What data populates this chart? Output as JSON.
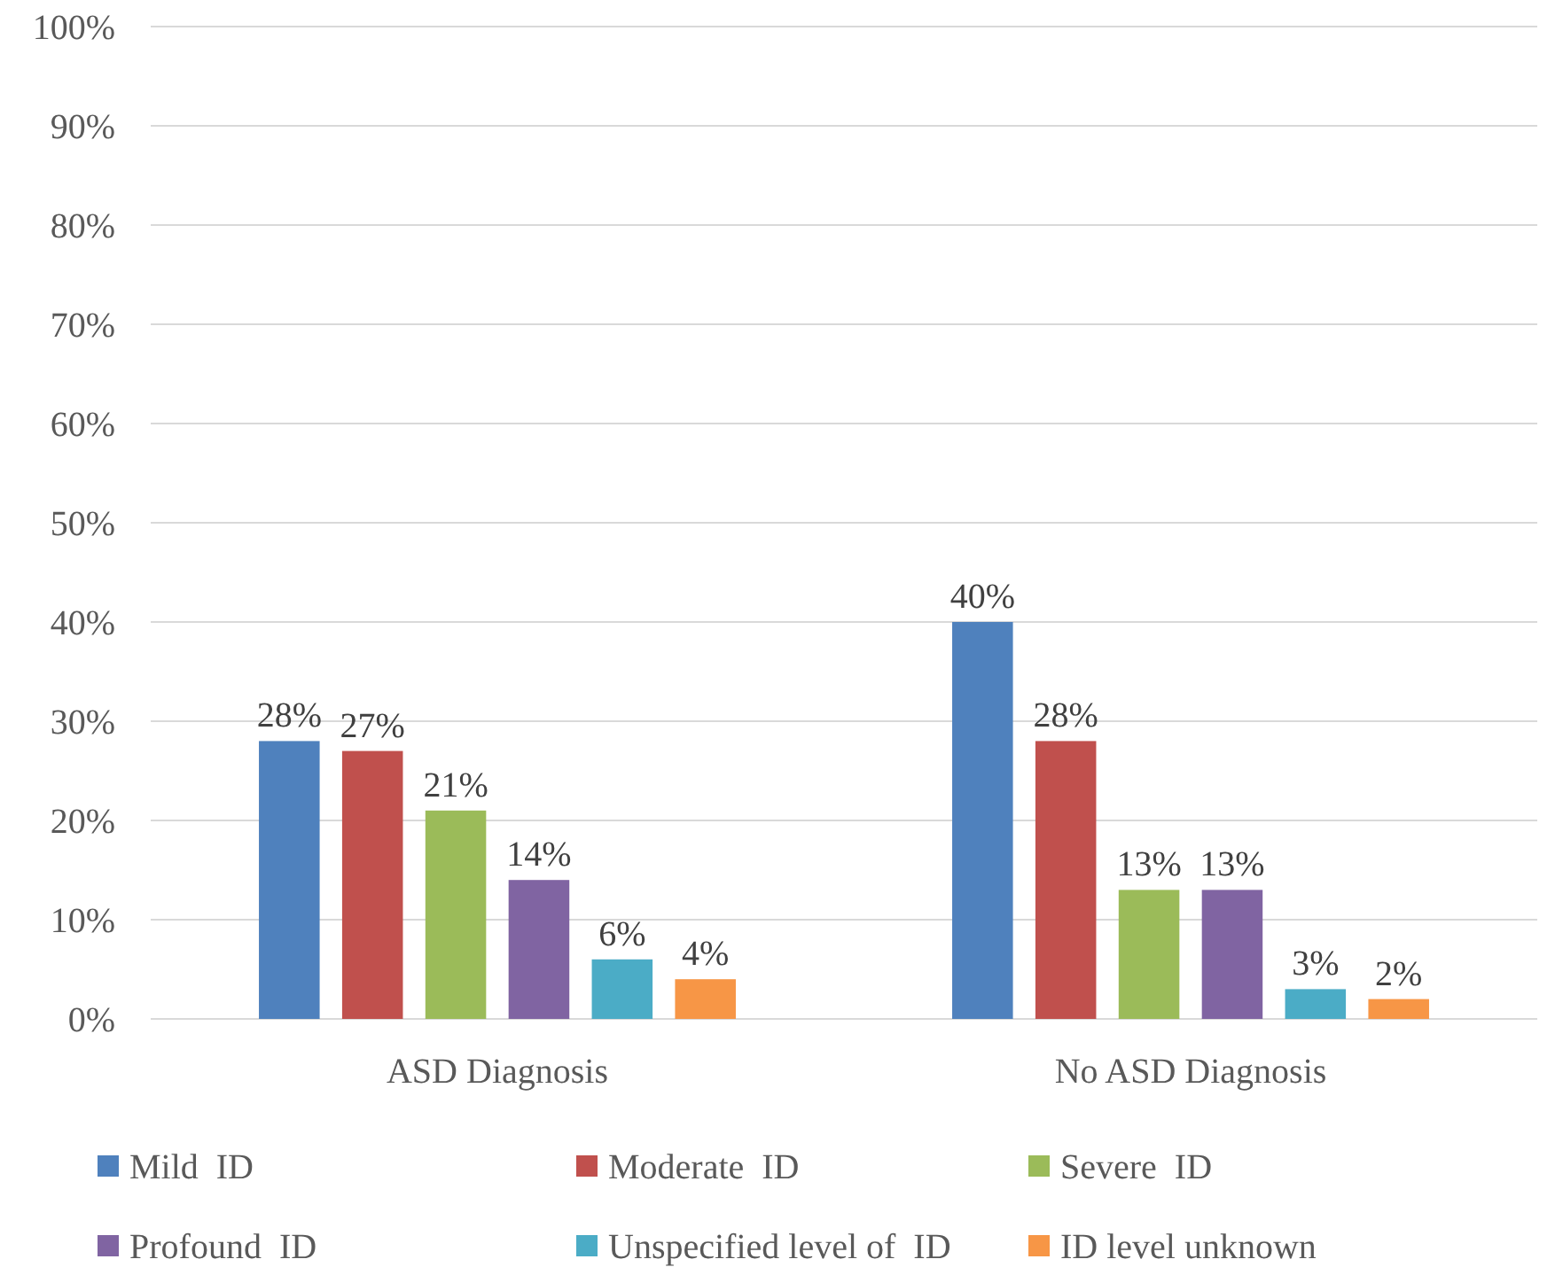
{
  "chart_data": {
    "type": "bar",
    "categories": [
      "ASD Diagnosis",
      "No ASD Diagnosis"
    ],
    "series": [
      {
        "name": "Mild  ID",
        "color": "#4f81bd",
        "values": [
          28,
          40
        ],
        "value_labels": [
          "28%",
          "40%"
        ]
      },
      {
        "name": "Moderate  ID",
        "color": "#c0504d",
        "values": [
          27,
          28
        ],
        "value_labels": [
          "27%",
          "28%"
        ]
      },
      {
        "name": "Severe  ID",
        "color": "#9bbb59",
        "values": [
          21,
          13
        ],
        "value_labels": [
          "21%",
          "13%"
        ]
      },
      {
        "name": "Profound  ID",
        "color": "#8064a2",
        "values": [
          14,
          13
        ],
        "value_labels": [
          "14%",
          "13%"
        ]
      },
      {
        "name": "Unspecified level of  ID",
        "color": "#4bacc6",
        "values": [
          6,
          3
        ],
        "value_labels": [
          "6%",
          "3%"
        ]
      },
      {
        "name": "ID level unknown",
        "color": "#f79646",
        "values": [
          4,
          2
        ],
        "value_labels": [
          "4%",
          "2%"
        ]
      }
    ],
    "ylim": [
      0,
      100
    ],
    "yticks": [
      {
        "value": 0,
        "label": "0%"
      },
      {
        "value": 10,
        "label": "10%"
      },
      {
        "value": 20,
        "label": "20%"
      },
      {
        "value": 30,
        "label": "30%"
      },
      {
        "value": 40,
        "label": "40%"
      },
      {
        "value": 50,
        "label": "50%"
      },
      {
        "value": 60,
        "label": "60%"
      },
      {
        "value": 70,
        "label": "70%"
      },
      {
        "value": 80,
        "label": "80%"
      },
      {
        "value": 90,
        "label": "90%"
      },
      {
        "value": 100,
        "label": "100%"
      }
    ],
    "grid": "y",
    "legend": "bottom"
  }
}
